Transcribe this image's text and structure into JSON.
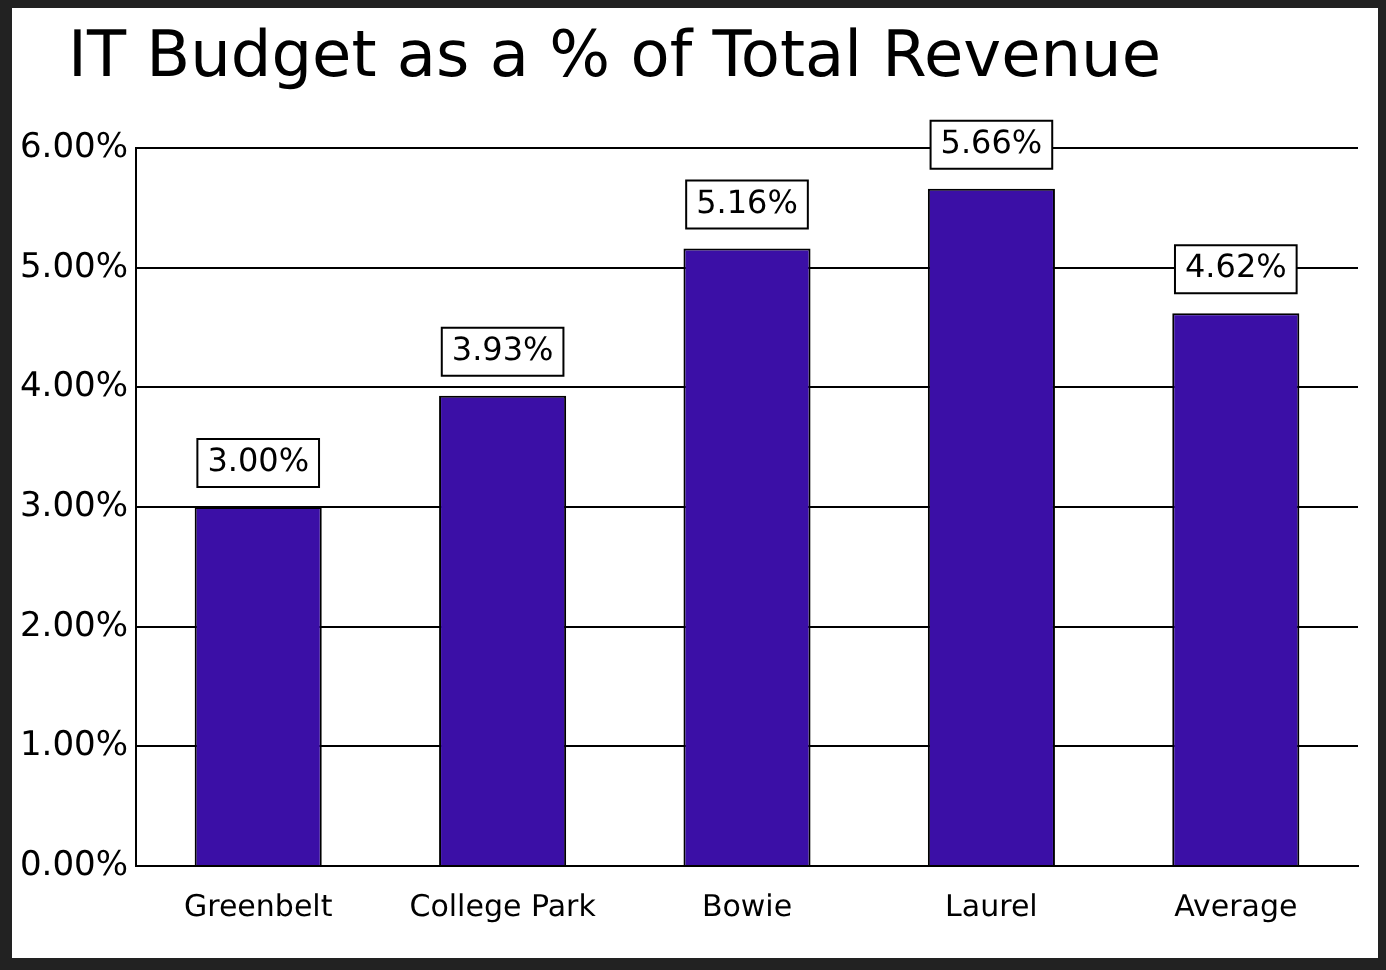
{
  "chart_data": {
    "type": "bar",
    "title": "IT Budget as a % of Total Revenue",
    "categories": [
      "Greenbelt",
      "College Park",
      "Bowie",
      "Laurel",
      "Average"
    ],
    "values": [
      3.0,
      3.93,
      5.16,
      5.66,
      4.62
    ],
    "value_labels": [
      "3.00%",
      "3.93%",
      "5.16%",
      "5.66%",
      "4.62%"
    ],
    "color": "#3b0fa6",
    "ylim": [
      0,
      6
    ],
    "yticks": [
      {
        "value": 0,
        "label": "0.00%"
      },
      {
        "value": 1,
        "label": "1.00%"
      },
      {
        "value": 2,
        "label": "2.00%"
      },
      {
        "value": 3,
        "label": "3.00%"
      },
      {
        "value": 4,
        "label": "4.00%"
      },
      {
        "value": 5,
        "label": "5.00%"
      },
      {
        "value": 6,
        "label": "6.00%"
      }
    ],
    "grid": "y",
    "legend": false
  }
}
